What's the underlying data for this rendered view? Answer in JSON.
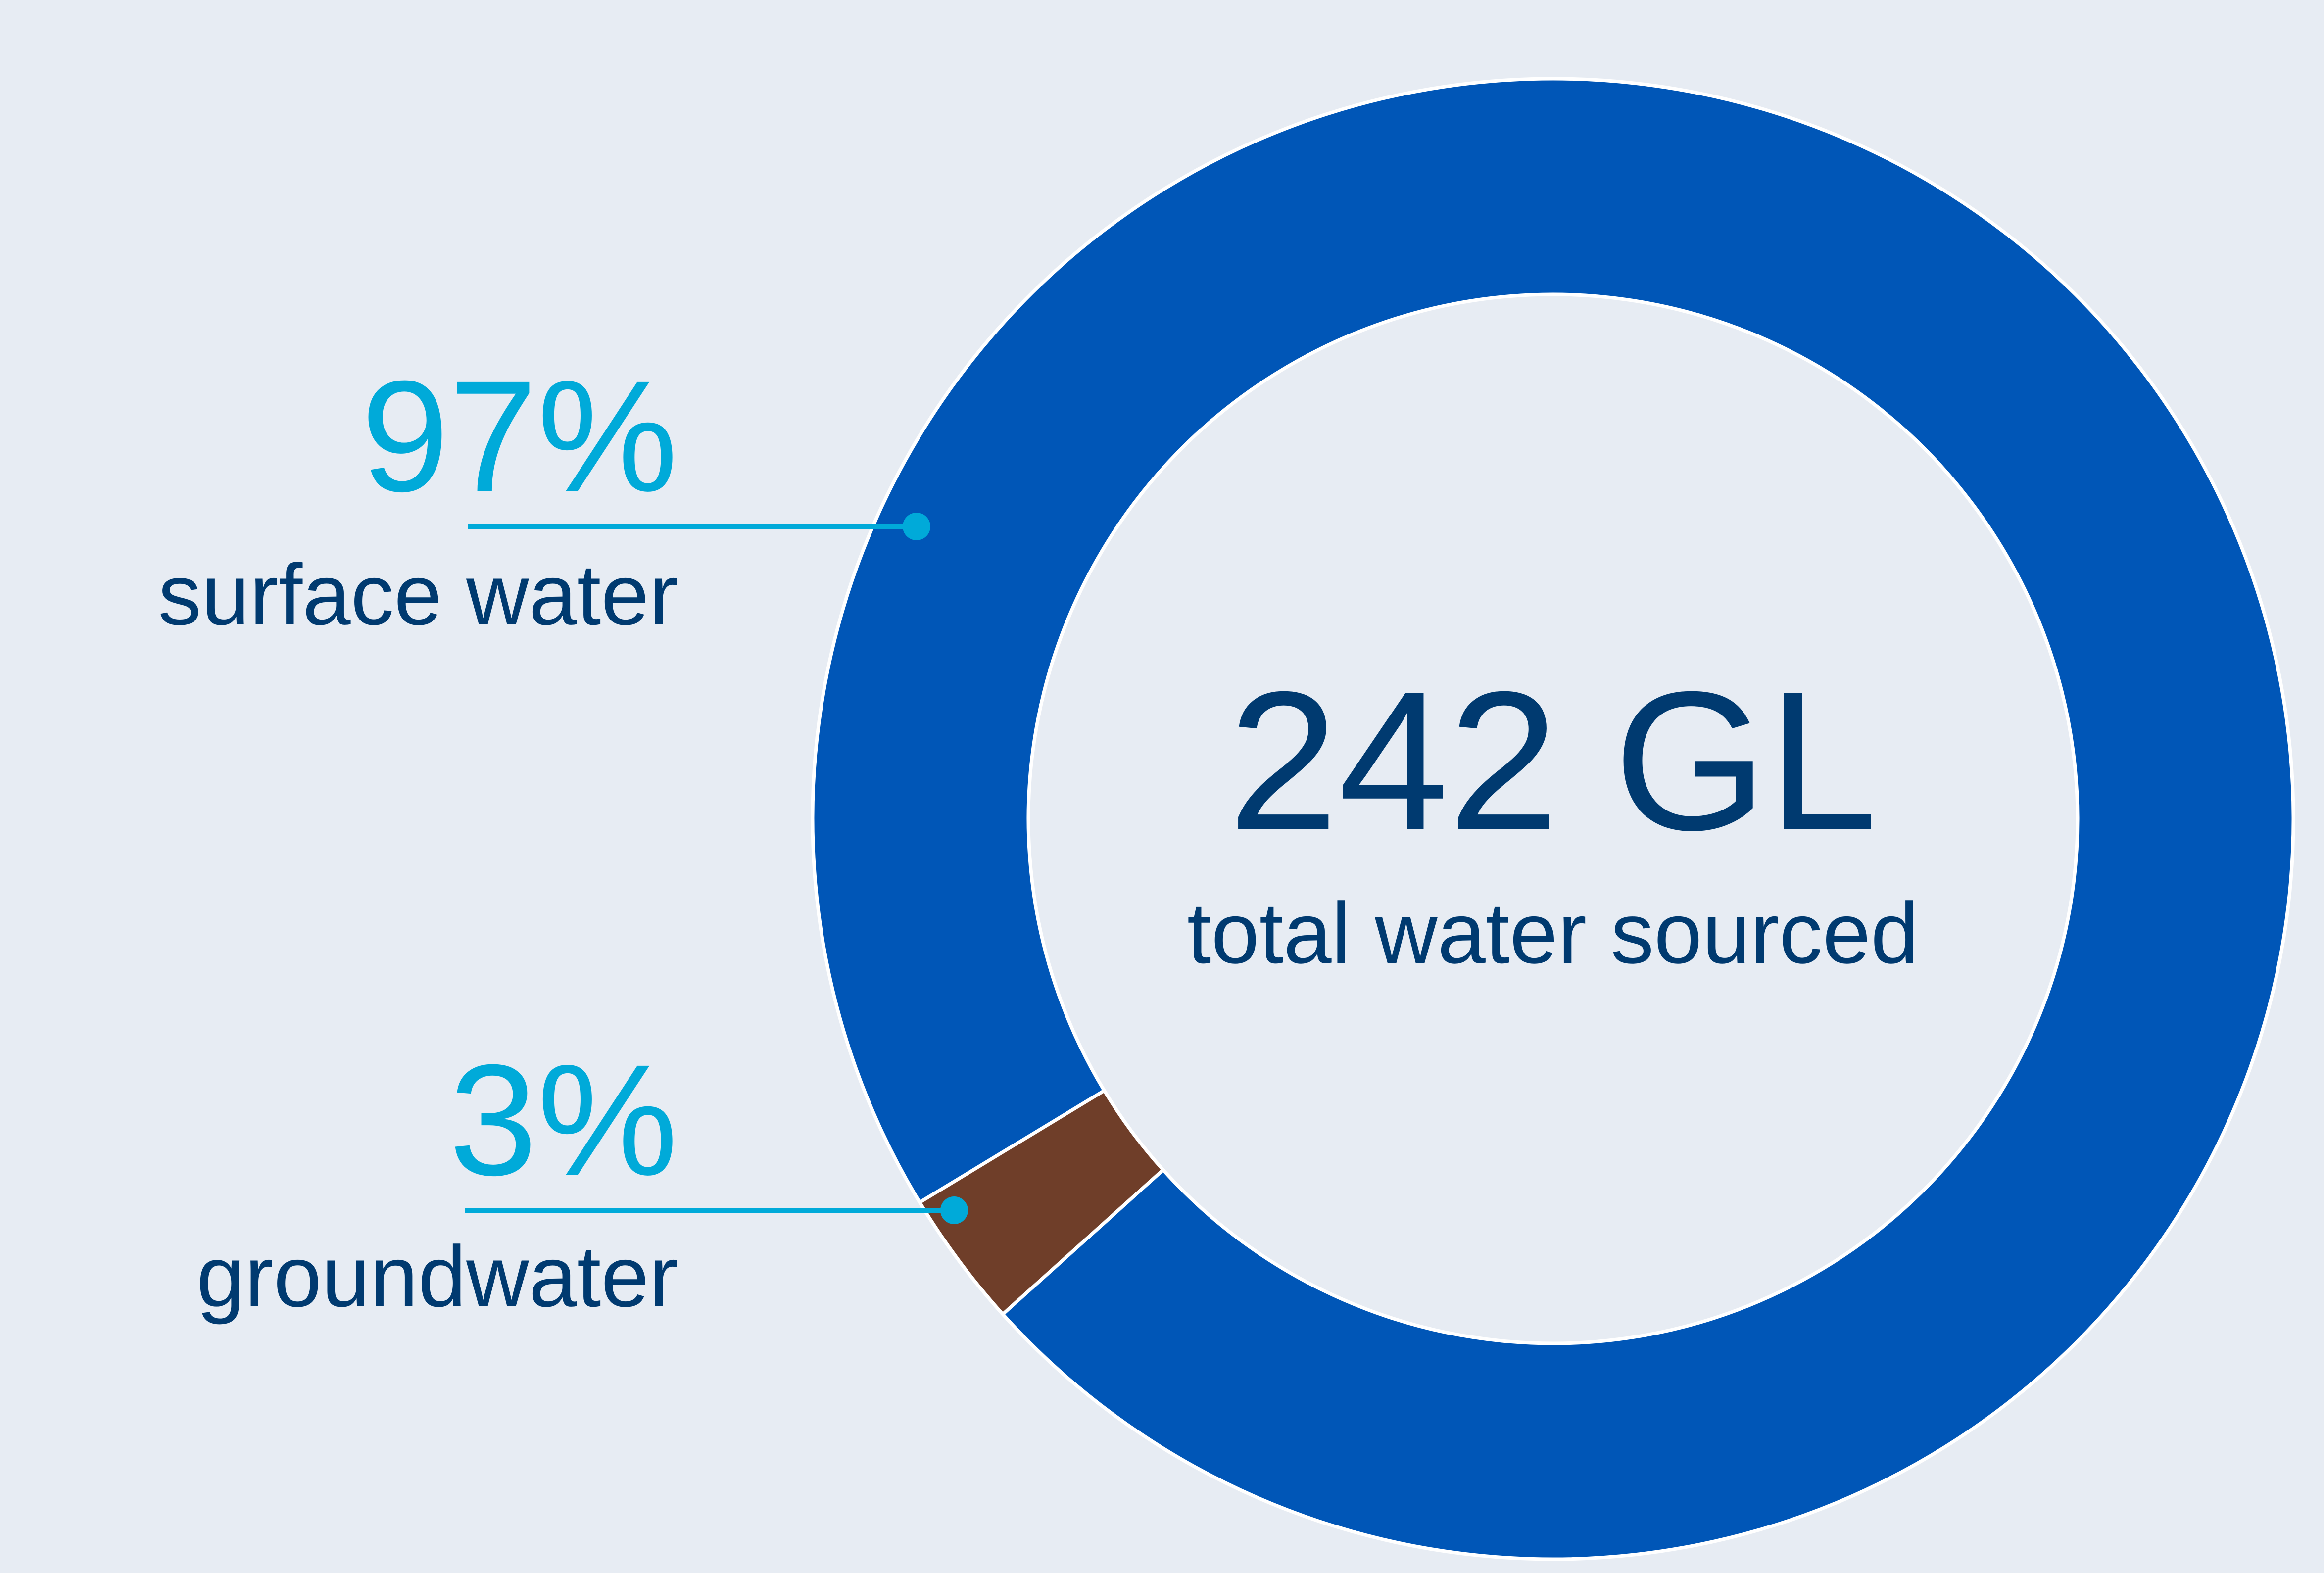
{
  "chart_data": {
    "type": "pie",
    "style": "donut",
    "total": {
      "value": "242 GL",
      "label": "total water sourced"
    },
    "slices": [
      {
        "name": "surface water",
        "percent_label": "97%",
        "value": 97,
        "color": "#0056B7"
      },
      {
        "name": "groundwater",
        "percent_label": "3%",
        "value": 3,
        "color": "#6F3E29"
      }
    ]
  },
  "colors": {
    "background": "#E7ECF3",
    "accent": "#00AAD9",
    "text": "#003A70",
    "separator": "#FFFFFF"
  }
}
